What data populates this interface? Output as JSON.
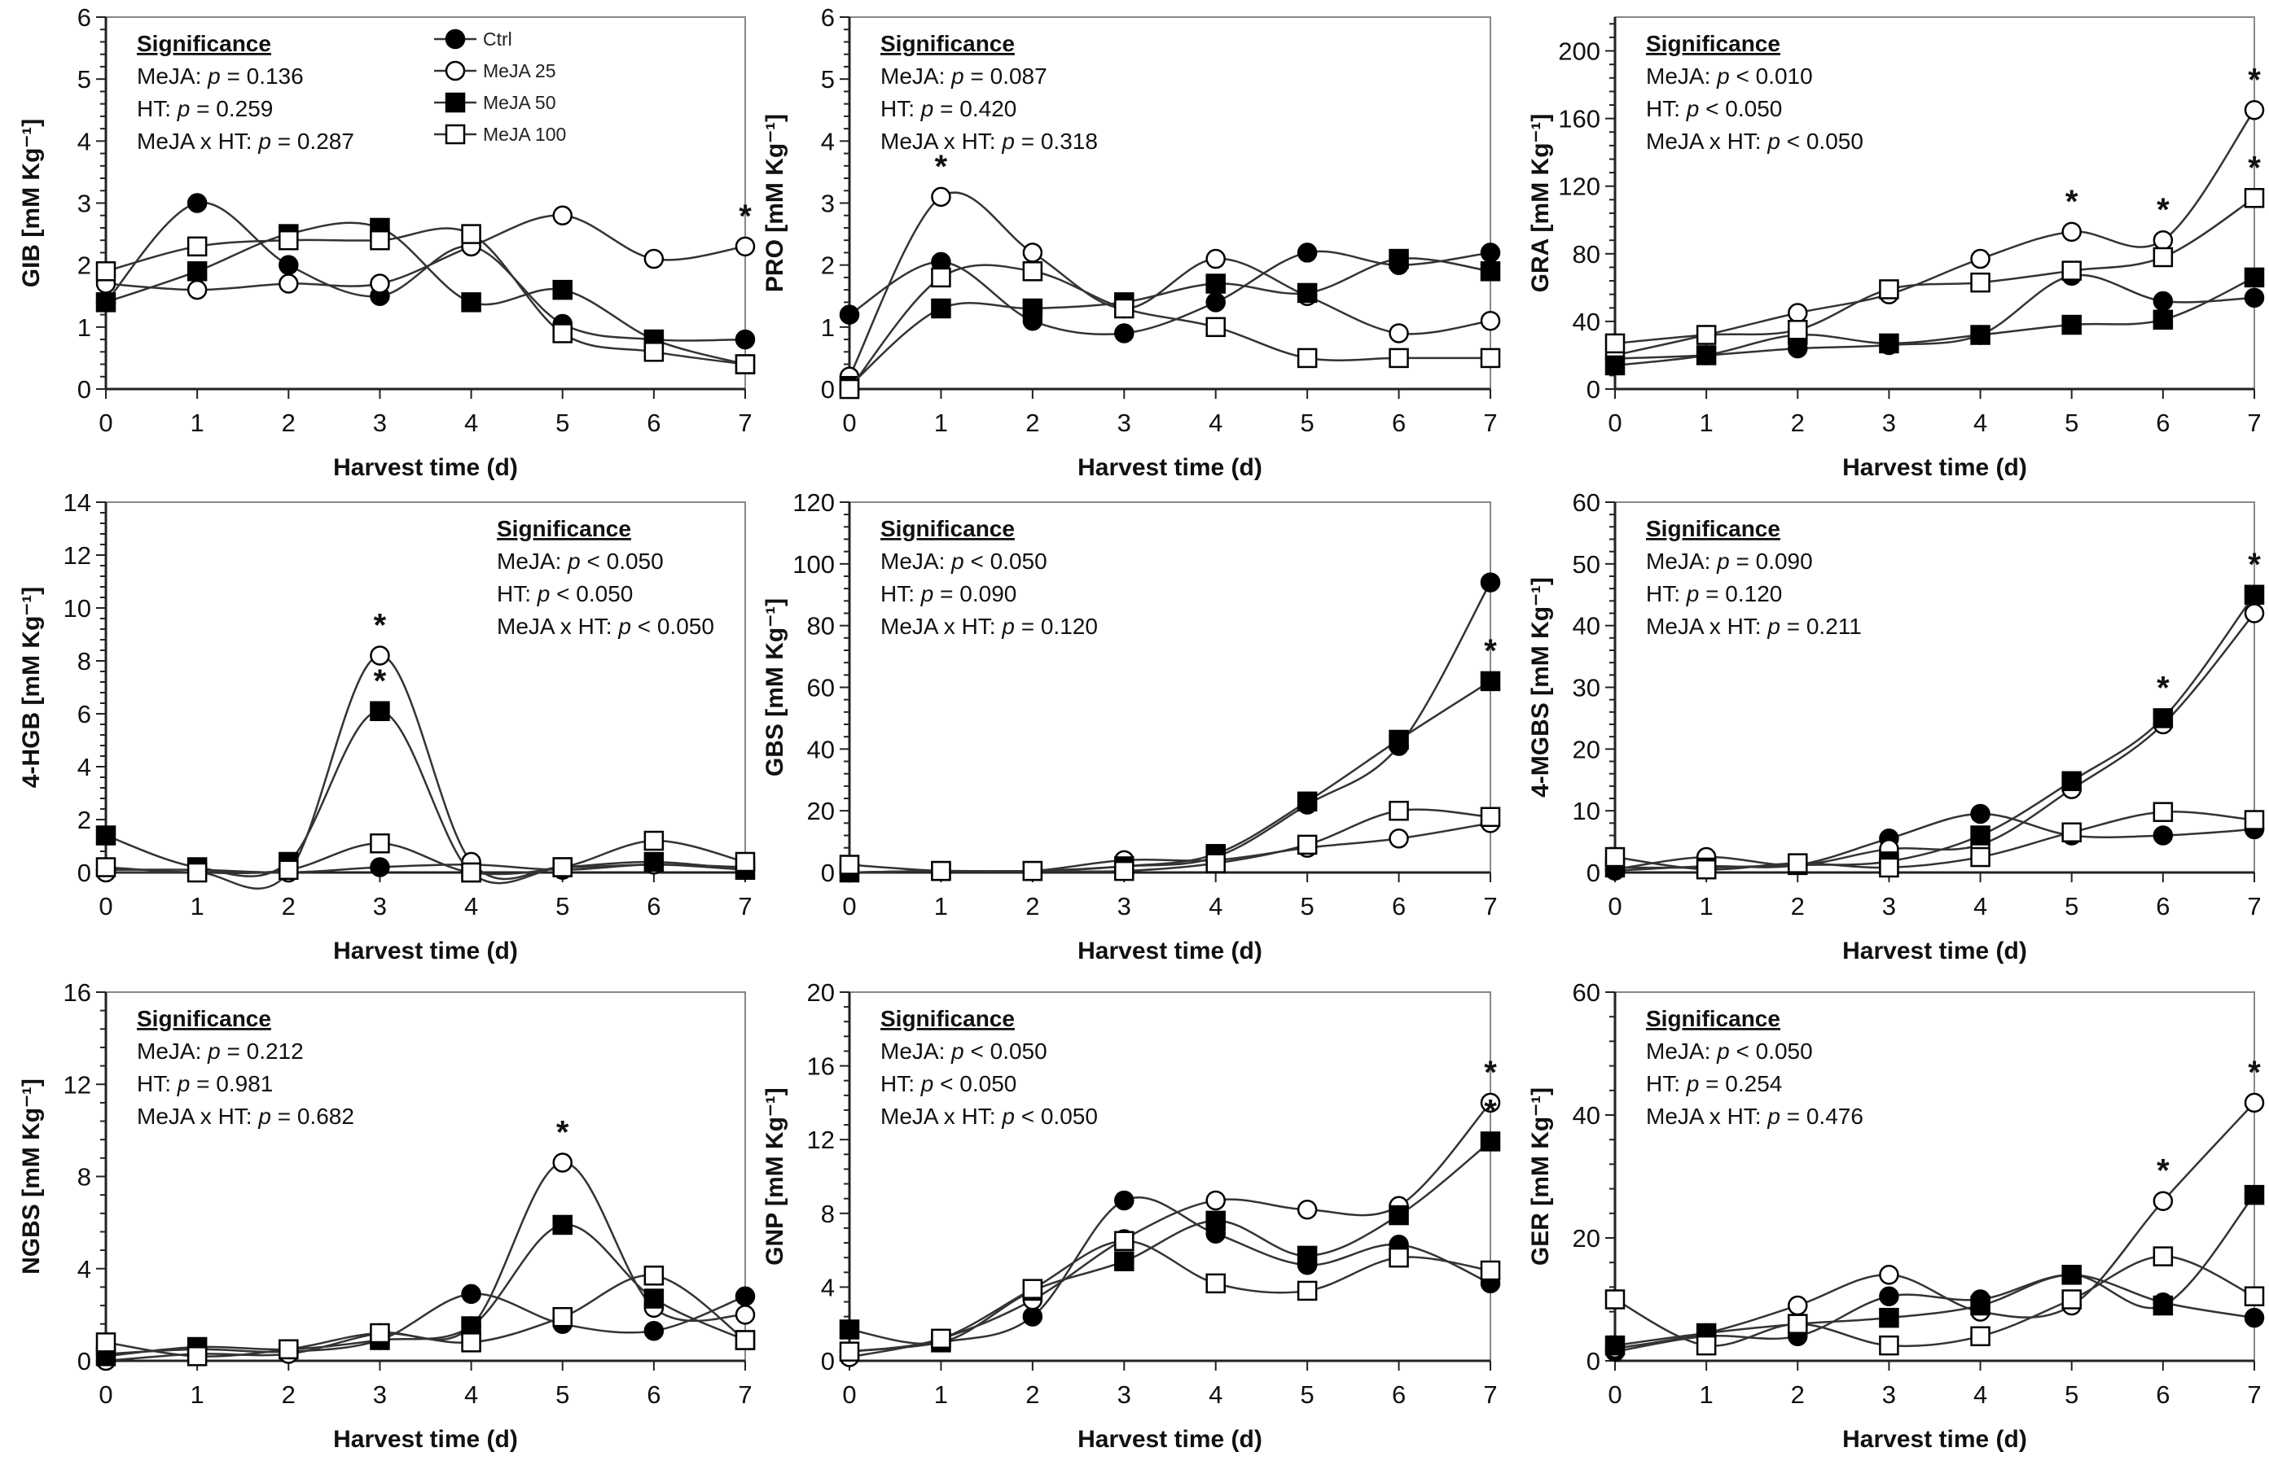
{
  "chart_data": [
    {
      "type": "line",
      "title": "GIB",
      "ylabel": "GIB [mM Kg⁻¹]",
      "xlabel": "Harvest time (d)",
      "x": [
        0,
        1,
        2,
        3,
        4,
        5,
        6,
        7
      ],
      "ylim": [
        0,
        6
      ],
      "yticks": [
        0,
        1,
        2,
        3,
        4,
        5,
        6
      ],
      "significance": {
        "title": "Significance",
        "lines": [
          {
            "label": "MeJA: ",
            "p": "p",
            "rest": " = 0.136"
          },
          {
            "label": "HT: ",
            "p": "p",
            "rest": " = 0.259"
          },
          {
            "label": "MeJA x HT: ",
            "p": "p",
            "rest": " = 0.287"
          }
        ]
      },
      "series": [
        {
          "name": "Ctrl",
          "values": [
            1.4,
            3.0,
            2.0,
            1.5,
            2.3,
            1.05,
            0.8,
            0.8
          ]
        },
        {
          "name": "MeJA 25",
          "values": [
            1.7,
            1.6,
            1.7,
            1.7,
            2.3,
            2.8,
            2.1,
            2.3
          ]
        },
        {
          "name": "MeJA 50",
          "values": [
            1.4,
            1.9,
            2.5,
            2.6,
            1.4,
            1.6,
            0.8,
            0.4
          ]
        },
        {
          "name": "MeJA 100",
          "values": [
            1.9,
            2.3,
            2.4,
            2.4,
            2.5,
            0.9,
            0.6,
            0.4
          ]
        }
      ],
      "stars": [
        {
          "x": 7,
          "series": "MeJA 25"
        }
      ],
      "legend": "top-right"
    },
    {
      "type": "line",
      "title": "PRO",
      "ylabel": "PRO [mM Kg⁻¹]",
      "xlabel": "Harvest time (d)",
      "x": [
        0,
        1,
        2,
        3,
        4,
        5,
        6,
        7
      ],
      "ylim": [
        0,
        6
      ],
      "yticks": [
        0,
        1,
        2,
        3,
        4,
        5,
        6
      ],
      "significance": {
        "title": "Significance",
        "lines": [
          {
            "label": "MeJA: ",
            "p": "p",
            "rest": " = 0.087"
          },
          {
            "label": "HT: ",
            "p": "p",
            "rest": " = 0.420"
          },
          {
            "label": "MeJA x HT: ",
            "p": "p",
            "rest": " = 0.318"
          }
        ]
      },
      "series": [
        {
          "name": "Ctrl",
          "values": [
            1.2,
            2.05,
            1.1,
            0.9,
            1.4,
            2.2,
            2.0,
            2.2
          ]
        },
        {
          "name": "MeJA 25",
          "values": [
            0.2,
            3.1,
            2.2,
            1.3,
            2.1,
            1.5,
            0.9,
            1.1
          ]
        },
        {
          "name": "MeJA 50",
          "values": [
            0.05,
            1.3,
            1.3,
            1.4,
            1.7,
            1.55,
            2.1,
            1.9
          ]
        },
        {
          "name": "MeJA 100",
          "values": [
            0,
            1.8,
            1.9,
            1.3,
            1.0,
            0.5,
            0.5,
            0.5
          ]
        }
      ],
      "stars": [
        {
          "x": 1,
          "series": "MeJA 25"
        }
      ]
    },
    {
      "type": "line",
      "title": "GRA",
      "ylabel": "GRA [mM Kg⁻¹]",
      "xlabel": "Harvest time (d)",
      "x": [
        0,
        1,
        2,
        3,
        4,
        5,
        6,
        7
      ],
      "ylim": [
        0,
        220
      ],
      "yticks": [
        0,
        40,
        80,
        120,
        160,
        200
      ],
      "significance": {
        "title": "Significance",
        "lines": [
          {
            "label": "MeJA: ",
            "p": "p",
            "rest": " < 0.010"
          },
          {
            "label": "HT: ",
            "p": "p",
            "rest": " < 0.050"
          },
          {
            "label": "MeJA x HT: ",
            "p": "p",
            "rest": " < 0.050"
          }
        ]
      },
      "series": [
        {
          "name": "Ctrl",
          "values": [
            18,
            20,
            24,
            26,
            32,
            67,
            52,
            54
          ]
        },
        {
          "name": "MeJA 25",
          "values": [
            20,
            32,
            45,
            56,
            77,
            93,
            88,
            165
          ]
        },
        {
          "name": "MeJA 50",
          "values": [
            14,
            20,
            32,
            27,
            32,
            38,
            41,
            66
          ]
        },
        {
          "name": "MeJA 100",
          "values": [
            27,
            32,
            35,
            59,
            63,
            70,
            78,
            113
          ]
        }
      ],
      "stars": [
        {
          "x": 5,
          "series": "MeJA 25"
        },
        {
          "x": 6,
          "series": "MeJA 25"
        },
        {
          "x": 7,
          "series": "MeJA 25"
        },
        {
          "x": 7,
          "series": "MeJA 100"
        }
      ]
    },
    {
      "type": "line",
      "title": "4-HGB",
      "ylabel": "4-HGB [mM Kg⁻¹]",
      "xlabel": "Harvest time (d)",
      "x": [
        0,
        1,
        2,
        3,
        4,
        5,
        6,
        7
      ],
      "ylim": [
        0,
        14
      ],
      "yticks": [
        0,
        2,
        4,
        6,
        8,
        10,
        12,
        14
      ],
      "significance": {
        "title": "Significance",
        "lines": [
          {
            "label": "MeJA: ",
            "p": "p",
            "rest": " < 0.050"
          },
          {
            "label": "HT: ",
            "p": "p",
            "rest": " < 0.050"
          },
          {
            "label": "MeJA x HT: ",
            "p": "p",
            "rest": " < 0.050"
          }
        ]
      },
      "series": [
        {
          "name": "Ctrl",
          "values": [
            0.1,
            0.1,
            0,
            0.2,
            0.3,
            0.1,
            0.3,
            0.1
          ]
        },
        {
          "name": "MeJA 25",
          "values": [
            0,
            0,
            0,
            8.2,
            0.4,
            0.2,
            0.3,
            0.2
          ]
        },
        {
          "name": "MeJA 50",
          "values": [
            1.4,
            0.2,
            0.4,
            6.1,
            0,
            0.2,
            0.4,
            0.1
          ]
        },
        {
          "name": "MeJA 100",
          "values": [
            0.2,
            0,
            0.1,
            1.1,
            0,
            0.2,
            1.2,
            0.4
          ]
        }
      ],
      "stars": [
        {
          "x": 3,
          "series": "MeJA 25"
        },
        {
          "x": 3,
          "series": "MeJA 50"
        }
      ]
    },
    {
      "type": "line",
      "title": "GBS",
      "ylabel": "GBS [mM Kg⁻¹]",
      "xlabel": "Harvest time (d)",
      "x": [
        0,
        1,
        2,
        3,
        4,
        5,
        6,
        7
      ],
      "ylim": [
        0,
        120
      ],
      "yticks": [
        0,
        20,
        40,
        60,
        80,
        100,
        120
      ],
      "significance": {
        "title": "Significance",
        "lines": [
          {
            "label": "MeJA: ",
            "p": "p",
            "rest": " < 0.050"
          },
          {
            "label": "HT: ",
            "p": "p",
            "rest": " = 0.090"
          },
          {
            "label": "MeJA x HT: ",
            "p": "p",
            "rest": " = 0.120"
          }
        ]
      },
      "series": [
        {
          "name": "Ctrl",
          "values": [
            0,
            0.5,
            0.5,
            2,
            5,
            22,
            41,
            94
          ]
        },
        {
          "name": "MeJA 25",
          "values": [
            0,
            0.5,
            0.5,
            4,
            4,
            8,
            11,
            16
          ]
        },
        {
          "name": "MeJA 50",
          "values": [
            0,
            0.5,
            0.5,
            2,
            6,
            23,
            43,
            62
          ]
        },
        {
          "name": "MeJA 100",
          "values": [
            2.5,
            0.5,
            0.5,
            0.5,
            3,
            9,
            20,
            18
          ]
        }
      ],
      "stars": [
        {
          "x": 7,
          "series": "MeJA 50"
        }
      ]
    },
    {
      "type": "line",
      "title": "4-MGBS",
      "ylabel": "4-MGBS [mM Kg⁻¹]",
      "xlabel": "Harvest time (d)",
      "x": [
        0,
        1,
        2,
        3,
        4,
        5,
        6,
        7
      ],
      "ylim": [
        0,
        60
      ],
      "yticks": [
        0,
        10,
        20,
        30,
        40,
        50,
        60
      ],
      "significance": {
        "title": "Significance",
        "lines": [
          {
            "label": "MeJA: ",
            "p": "p",
            "rest": " = 0.090"
          },
          {
            "label": "HT: ",
            "p": "p",
            "rest": " = 0.120"
          },
          {
            "label": "MeJA x HT: ",
            "p": "p",
            "rest": " = 0.211"
          }
        ]
      },
      "series": [
        {
          "name": "Ctrl",
          "values": [
            0.3,
            1,
            1.2,
            5.5,
            9.5,
            6,
            6,
            7
          ]
        },
        {
          "name": "MeJA 25",
          "values": [
            0.5,
            2.5,
            1.2,
            3.8,
            4.5,
            13.5,
            24,
            42
          ]
        },
        {
          "name": "MeJA 50",
          "values": [
            0.8,
            0.8,
            1.2,
            1.8,
            6,
            14.8,
            25,
            45
          ]
        },
        {
          "name": "MeJA 100",
          "values": [
            2.5,
            0.5,
            1.5,
            0.8,
            2.5,
            6.5,
            9.8,
            8.5
          ]
        }
      ],
      "stars": [
        {
          "x": 6,
          "series": "MeJA 50"
        },
        {
          "x": 7,
          "series": "MeJA 50"
        }
      ]
    },
    {
      "type": "line",
      "title": "NGBS",
      "ylabel": "NGBS [mM Kg⁻¹]",
      "xlabel": "Harvest time (d)",
      "x": [
        0,
        1,
        2,
        3,
        4,
        5,
        6,
        7
      ],
      "ylim": [
        0,
        16
      ],
      "yticks": [
        0,
        4,
        8,
        12,
        16
      ],
      "significance": {
        "title": "Significance",
        "lines": [
          {
            "label": "MeJA: ",
            "p": "p",
            "rest": " = 0.212"
          },
          {
            "label": "HT: ",
            "p": "p",
            "rest": " = 0.981"
          },
          {
            "label": "MeJA x HT: ",
            "p": "p",
            "rest": " = 0.682"
          }
        ]
      },
      "series": [
        {
          "name": "Ctrl",
          "values": [
            0.3,
            0.5,
            0.4,
            0.9,
            2.9,
            1.6,
            1.3,
            2.8
          ]
        },
        {
          "name": "MeJA 25",
          "values": [
            0,
            0.3,
            0.3,
            1.2,
            1.5,
            8.6,
            2.3,
            2.0
          ]
        },
        {
          "name": "MeJA 50",
          "values": [
            0.2,
            0.6,
            0.5,
            0.9,
            1.5,
            5.9,
            2.7,
            0.9
          ]
        },
        {
          "name": "MeJA 100",
          "values": [
            0.8,
            0.2,
            0.5,
            1.2,
            0.8,
            1.9,
            3.7,
            0.9
          ]
        }
      ],
      "stars": [
        {
          "x": 5,
          "series": "MeJA 25"
        }
      ]
    },
    {
      "type": "line",
      "title": "GNP",
      "ylabel": "GNP [mM Kg⁻¹]",
      "xlabel": "Harvest time (d)",
      "x": [
        0,
        1,
        2,
        3,
        4,
        5,
        6,
        7
      ],
      "ylim": [
        0,
        20
      ],
      "yticks": [
        0,
        4,
        8,
        12,
        16,
        20
      ],
      "significance": {
        "title": "Significance",
        "lines": [
          {
            "label": "MeJA: ",
            "p": "p",
            "rest": " < 0.050"
          },
          {
            "label": "HT: ",
            "p": "p",
            "rest": " < 0.050"
          },
          {
            "label": "MeJA x HT: ",
            "p": "p",
            "rest": " < 0.050"
          }
        ]
      },
      "series": [
        {
          "name": "Ctrl",
          "values": [
            0.5,
            1.0,
            2.4,
            8.7,
            6.9,
            5.2,
            6.3,
            4.2
          ]
        },
        {
          "name": "MeJA 25",
          "values": [
            0.2,
            1.2,
            3.3,
            6.6,
            8.7,
            8.2,
            8.4,
            14
          ]
        },
        {
          "name": "MeJA 50",
          "values": [
            1.7,
            1.0,
            3.8,
            5.4,
            7.6,
            5.7,
            7.9,
            11.9
          ]
        },
        {
          "name": "MeJA 100",
          "values": [
            0.5,
            1.2,
            3.9,
            6.5,
            4.2,
            3.8,
            5.6,
            4.9
          ]
        }
      ],
      "stars": [
        {
          "x": 7,
          "series": "MeJA 25"
        },
        {
          "x": 7,
          "series": "MeJA 50"
        }
      ]
    },
    {
      "type": "line",
      "title": "GER",
      "ylabel": "GER [mM Kg⁻¹]",
      "xlabel": "Harvest time (d)",
      "x": [
        0,
        1,
        2,
        3,
        4,
        5,
        6,
        7
      ],
      "ylim": [
        0,
        60
      ],
      "yticks": [
        0,
        20,
        40,
        60
      ],
      "significance": {
        "title": "Significance",
        "lines": [
          {
            "label": "MeJA: ",
            "p": "p",
            "rest": " < 0.050"
          },
          {
            "label": "HT: ",
            "p": "p",
            "rest": " = 0.254"
          },
          {
            "label": "MeJA x HT: ",
            "p": "p",
            "rest": " = 0.476"
          }
        ]
      },
      "series": [
        {
          "name": "Ctrl",
          "values": [
            1.5,
            4,
            4,
            10.5,
            10,
            14,
            9.5,
            7
          ]
        },
        {
          "name": "MeJA 25",
          "values": [
            2,
            4.5,
            9,
            14,
            8,
            9,
            26,
            42
          ]
        },
        {
          "name": "MeJA 50",
          "values": [
            2.5,
            4.5,
            6,
            7,
            9,
            14,
            9,
            27
          ]
        },
        {
          "name": "MeJA 100",
          "values": [
            10,
            2.5,
            6,
            2.5,
            4,
            10,
            17,
            10.5
          ]
        }
      ],
      "stars": [
        {
          "x": 6,
          "series": "MeJA 25"
        },
        {
          "x": 7,
          "series": "MeJA 25"
        }
      ]
    }
  ],
  "markers": {
    "Ctrl": "filled-circle",
    "MeJA 25": "open-circle",
    "MeJA 50": "filled-square",
    "MeJA 100": "open-square"
  },
  "star_symbol": "*",
  "colors": {
    "line": "#333333",
    "axis": "#222222",
    "text": "#111111"
  }
}
